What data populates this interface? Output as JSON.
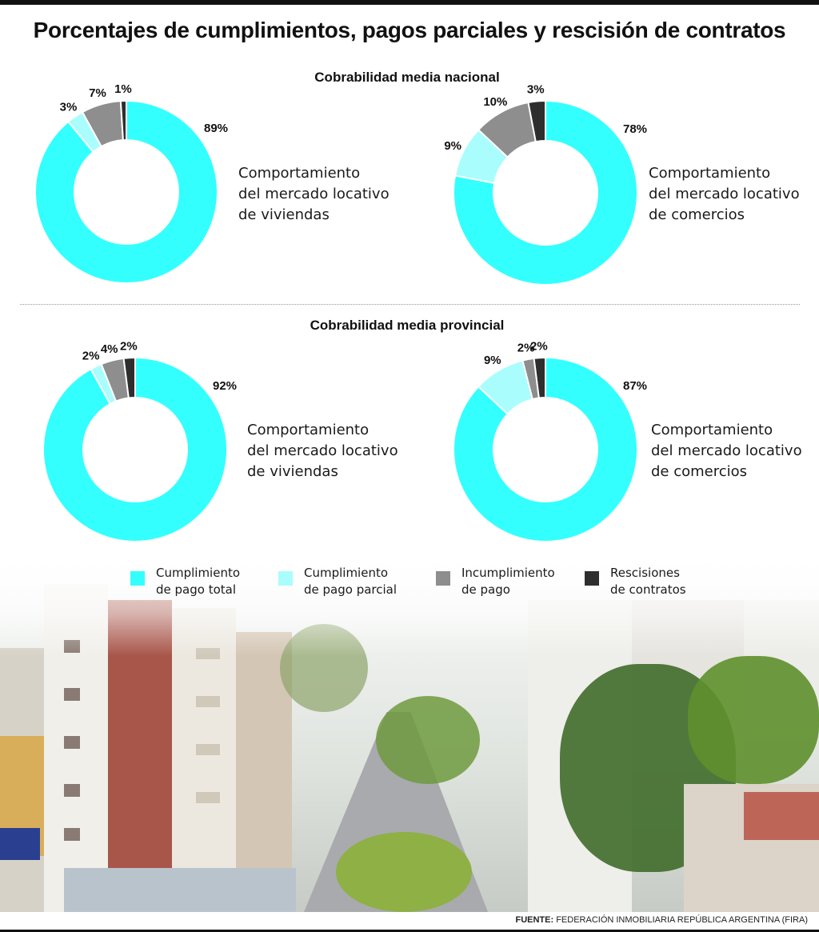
{
  "title": "Porcentajes de cumplimientos, pagos parciales y rescisión de contratos",
  "sections": [
    {
      "title": "Cobrabilidad media nacional"
    },
    {
      "title": "Cobrabilidad media provincial"
    }
  ],
  "colors": {
    "cumplimiento_total": "#33FFFF",
    "cumplimiento_parcial": "#AAFDFD",
    "incumplimiento": "#8E8E8E",
    "rescisiones": "#2E2E2E"
  },
  "legend": [
    {
      "line1": "Cumplimiento",
      "line2": "de pago total",
      "color": "#33FFFF"
    },
    {
      "line1": "Cumplimiento",
      "line2": "de pago parcial",
      "color": "#AAFDFD"
    },
    {
      "line1": "Incumplimiento",
      "line2": "de pago",
      "color": "#8E8E8E"
    },
    {
      "line1": "Rescisiones",
      "line2": "de contratos",
      "color": "#2E2E2E"
    }
  ],
  "chart_data": [
    {
      "type": "pie",
      "section": "Cobrabilidad media nacional",
      "desc_lines": [
        "Comportamiento",
        "del mercado locativo",
        "de viviendas"
      ],
      "categories": [
        "Cumplimiento de pago total",
        "Cumplimiento de pago parcial",
        "Incumplimiento de pago",
        "Rescisiones de contratos"
      ],
      "values": [
        89,
        3,
        7,
        1
      ],
      "labels": [
        "89%",
        "3%",
        "7%",
        "1%"
      ]
    },
    {
      "type": "pie",
      "section": "Cobrabilidad media nacional",
      "desc_lines": [
        "Comportamiento",
        "del mercado locativo",
        "de comercios"
      ],
      "categories": [
        "Cumplimiento de pago total",
        "Cumplimiento de pago parcial",
        "Incumplimiento de pago",
        "Rescisiones de contratos"
      ],
      "values": [
        78,
        9,
        10,
        3
      ],
      "labels": [
        "78%",
        "9%",
        "10%",
        "3%"
      ]
    },
    {
      "type": "pie",
      "section": "Cobrabilidad media provincial",
      "desc_lines": [
        "Comportamiento",
        "del mercado locativo",
        "de viviendas"
      ],
      "categories": [
        "Cumplimiento de pago total",
        "Cumplimiento de pago parcial",
        "Incumplimiento de pago",
        "Rescisiones de contratos"
      ],
      "values": [
        92,
        2,
        4,
        2
      ],
      "labels": [
        "92%",
        "2%",
        "4%",
        "2%"
      ]
    },
    {
      "type": "pie",
      "section": "Cobrabilidad media provincial",
      "desc_lines": [
        "Comportamiento",
        "del mercado locativo",
        "de comercios"
      ],
      "categories": [
        "Cumplimiento de pago total",
        "Cumplimiento de pago parcial",
        "Incumplimiento de pago",
        "Rescisiones de contratos"
      ],
      "values": [
        87,
        9,
        2,
        2
      ],
      "labels": [
        "87%",
        "9%",
        "2%",
        "2%"
      ]
    }
  ],
  "source": {
    "label": "FUENTE:",
    "text": "FEDERACIÓN INMOBILIARIA REPÚBLICA ARGENTINA (FIRA)"
  }
}
